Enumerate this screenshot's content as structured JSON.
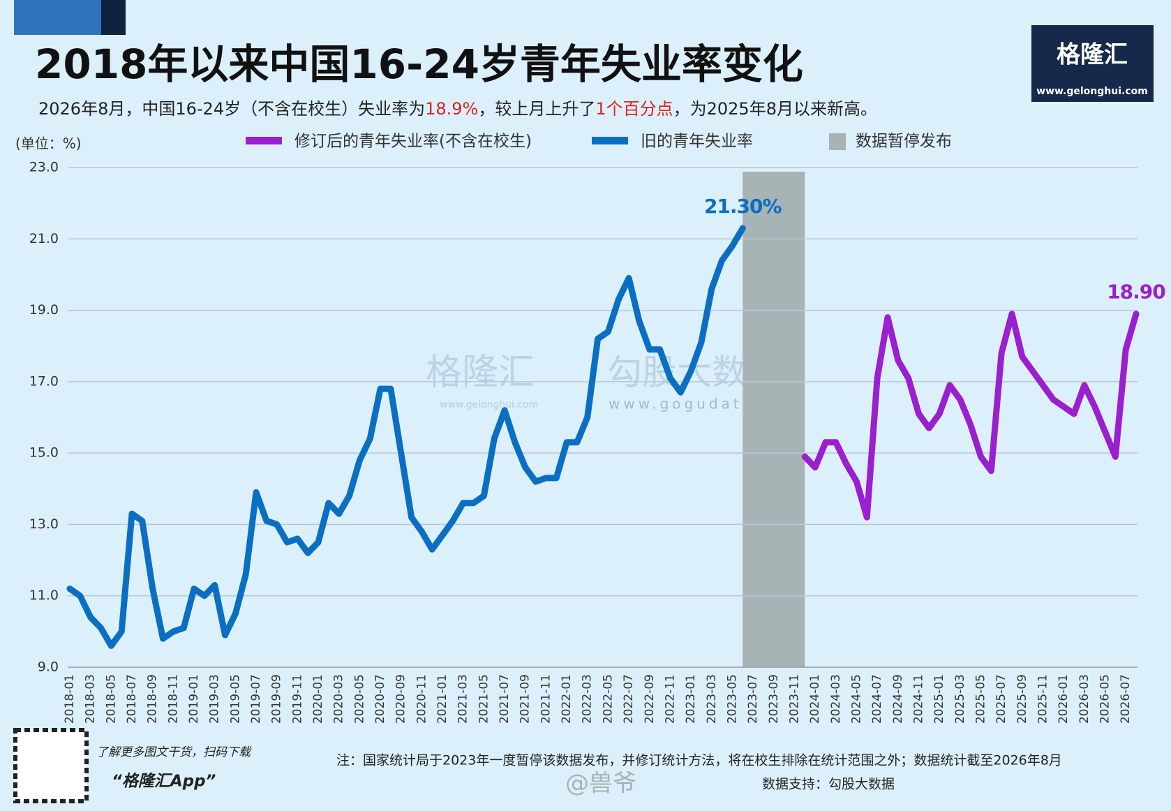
{
  "chart_data": {
    "type": "line",
    "title": "2018年以来中国16-24岁青年失业率变化",
    "subtitle": [
      "2026年8月，中国16-24岁（不含在校生）失业率为",
      "18.9%",
      "，较上月上升了",
      "1个百分点",
      "，为2025年8月以来新高。"
    ],
    "unit_label": "(单位：%)",
    "categories": [
      "2018-01",
      null,
      "2018-03",
      null,
      "2018-05",
      null,
      "2018-07",
      null,
      "2018-09",
      null,
      "2018-11",
      null,
      "2019-01",
      null,
      "2019-03",
      null,
      "2019-05",
      null,
      "2019-07",
      null,
      "2019-09",
      null,
      "2019-11",
      null,
      "2020-01",
      null,
      "2020-03",
      null,
      "2020-05",
      null,
      "2020-07",
      null,
      "2020-09",
      null,
      "2020-11",
      null,
      "2021-01",
      null,
      "2021-03",
      null,
      "2021-05",
      null,
      "2021-07",
      null,
      "2021-09",
      null,
      "2021-11",
      null,
      "2022-01",
      null,
      "2022-03",
      null,
      "2022-05",
      null,
      "2022-07",
      null,
      "2022-09",
      null,
      "2022-11",
      null,
      "2023-01",
      null,
      "2023-03",
      null,
      "2023-05",
      null,
      "2023-07",
      null,
      "2023-09",
      null,
      "2023-11",
      null,
      "2024-01",
      null,
      "2024-03",
      null,
      "2024-05",
      null,
      "2024-07",
      null,
      "2024-09",
      null,
      "2024-11",
      null,
      "2025-01",
      null,
      "2025-03",
      null,
      "2025-05",
      null,
      "2025-07",
      null,
      "2025-09",
      null,
      "2025-11",
      null,
      "2026-01",
      null,
      "2026-03",
      null,
      "2026-05",
      null,
      "2026-07",
      null
    ],
    "series": [
      {
        "name": "修订后的青年失业率(不含在校生)",
        "color": "#9a1fcf",
        "values": [
          null,
          null,
          null,
          null,
          null,
          null,
          null,
          null,
          null,
          null,
          null,
          null,
          null,
          null,
          null,
          null,
          null,
          null,
          null,
          null,
          null,
          null,
          null,
          null,
          null,
          null,
          null,
          null,
          null,
          null,
          null,
          null,
          null,
          null,
          null,
          null,
          null,
          null,
          null,
          null,
          null,
          null,
          null,
          null,
          null,
          null,
          null,
          null,
          null,
          null,
          null,
          null,
          null,
          null,
          null,
          null,
          null,
          null,
          null,
          null,
          null,
          null,
          null,
          null,
          null,
          null,
          null,
          null,
          null,
          null,
          null,
          14.9,
          14.6,
          15.3,
          15.3,
          14.7,
          14.2,
          13.2,
          17.1,
          18.8,
          17.6,
          17.1,
          16.1,
          15.7,
          16.1,
          16.9,
          16.5,
          15.8,
          14.9,
          14.5,
          17.8,
          18.9,
          17.7,
          17.3,
          16.9,
          16.5,
          16.3,
          16.1,
          16.9,
          16.3,
          15.6,
          14.9,
          17.9,
          18.9
        ],
        "value_labels": [
          null,
          null,
          null,
          null,
          null,
          null,
          null,
          null,
          null,
          null,
          null,
          null,
          null,
          null,
          null,
          null,
          null,
          null,
          null,
          null,
          null,
          null,
          null,
          null,
          null,
          null,
          null,
          null,
          null,
          null,
          null,
          null,
          null,
          null,
          null,
          null,
          null,
          null,
          null,
          null,
          null,
          null,
          null,
          null,
          null,
          null,
          null,
          null,
          null,
          null,
          null,
          null,
          null,
          null,
          null,
          null,
          null,
          null,
          null,
          null,
          null,
          null,
          null,
          null,
          null,
          null,
          null,
          null,
          null,
          null,
          null,
          null,
          null,
          null,
          null,
          null,
          null,
          null,
          null,
          null,
          null,
          null,
          null,
          null,
          null,
          null,
          null,
          null,
          null,
          null,
          null,
          null,
          null,
          null,
          null,
          null,
          null,
          null,
          null,
          null,
          null,
          null,
          null,
          "18.90"
        ]
      },
      {
        "name": "旧的青年失业率",
        "color": "#0a6fc2",
        "values": [
          11.2,
          11.0,
          10.4,
          10.1,
          9.6,
          10.0,
          13.3,
          13.1,
          11.2,
          9.8,
          10.0,
          10.1,
          11.2,
          11.0,
          11.3,
          9.9,
          10.5,
          11.6,
          13.9,
          13.1,
          13.0,
          12.5,
          12.6,
          12.2,
          12.5,
          13.6,
          13.3,
          13.8,
          14.8,
          15.4,
          16.8,
          16.8,
          15.0,
          13.2,
          12.8,
          12.3,
          12.7,
          13.1,
          13.6,
          13.6,
          13.8,
          15.4,
          16.2,
          15.3,
          14.6,
          14.2,
          14.3,
          14.3,
          15.3,
          15.3,
          16.0,
          18.2,
          18.4,
          19.3,
          19.9,
          18.7,
          17.9,
          17.9,
          17.1,
          16.7,
          17.3,
          18.1,
          19.6,
          20.4,
          20.8,
          21.3,
          null,
          null,
          null,
          null,
          null,
          null,
          null,
          null,
          null,
          null,
          null,
          null,
          null,
          null,
          null,
          null,
          null,
          null,
          null,
          null,
          null,
          null,
          null,
          null,
          null,
          null,
          null,
          null,
          null,
          null,
          null,
          null,
          null,
          null,
          null,
          null,
          null,
          null
        ],
        "value_labels": [
          null,
          null,
          null,
          null,
          null,
          null,
          null,
          null,
          null,
          null,
          null,
          null,
          null,
          null,
          null,
          null,
          null,
          null,
          null,
          null,
          null,
          null,
          null,
          null,
          null,
          null,
          null,
          null,
          null,
          null,
          null,
          null,
          null,
          null,
          null,
          null,
          null,
          null,
          null,
          null,
          null,
          null,
          null,
          null,
          null,
          null,
          null,
          null,
          null,
          null,
          null,
          null,
          null,
          null,
          null,
          null,
          null,
          null,
          null,
          null,
          null,
          null,
          null,
          null,
          null,
          "21.30%",
          null,
          null,
          null,
          null,
          null,
          null,
          null,
          null,
          null,
          null,
          null,
          null,
          null,
          null,
          null,
          null,
          null,
          null,
          null,
          null,
          null,
          null,
          null,
          null,
          null,
          null,
          null,
          null,
          null,
          null,
          null,
          null,
          null,
          null,
          null,
          null,
          null,
          null
        ]
      }
    ],
    "suspended": {
      "name": "数据暂停发布",
      "color": "#a8b3b6",
      "from": "2023-07",
      "to": "2023-11"
    },
    "ylim": [
      9,
      23
    ],
    "yticks": [
      {
        "value": 9,
        "label": "9.0"
      },
      {
        "value": 11,
        "label": "11.0"
      },
      {
        "value": 13,
        "label": "13.0"
      },
      {
        "value": 15,
        "label": "15.0"
      },
      {
        "value": 17,
        "label": "17.0"
      },
      {
        "value": 19,
        "label": "19.0"
      },
      {
        "value": 21,
        "label": "21.0"
      },
      {
        "value": 23,
        "label": "23.0"
      }
    ],
    "grid": true,
    "note": "注：国家统计局于2023年一度暂停该数据发布，并修订统计方法，将在校生排除在统计范围之外；数据统计截至2026年8月",
    "source": "数据支持：勾股大数据"
  },
  "branding": {
    "logo": "格隆汇",
    "url": "www.gelonghui.com",
    "qr_caption": "了解更多图文干货，扫码下载",
    "app": "“格隆汇App”",
    "watermarks": [
      "格隆汇",
      "www.gelonghui.com",
      "勾股大数据",
      "www.gogudata.com"
    ],
    "weibo": "@兽爷"
  }
}
